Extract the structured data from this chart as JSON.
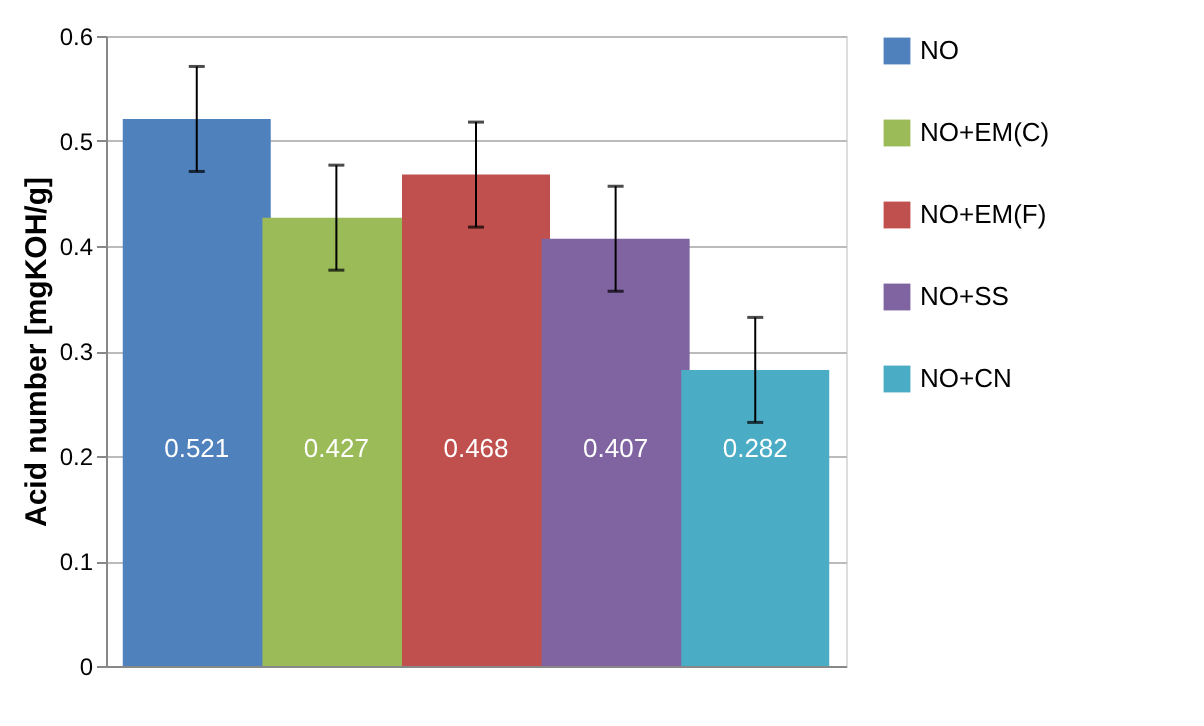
{
  "chart_data": {
    "type": "bar",
    "ylabel": "Acid number [mgKOH/g]",
    "categories": [
      null
    ],
    "series": [
      {
        "name": "NO",
        "color": "#4f81bd",
        "values": [
          0.521
        ],
        "errors": [
          0.05
        ]
      },
      {
        "name": "NO+EM(C)",
        "color": "#9bbb59",
        "values": [
          0.427
        ],
        "errors": [
          0.05
        ]
      },
      {
        "name": "NO+EM(F)",
        "color": "#c0504d",
        "values": [
          0.468
        ],
        "errors": [
          0.05
        ]
      },
      {
        "name": "NO+SS",
        "color": "#8064a2",
        "values": [
          0.407
        ],
        "errors": [
          0.05
        ]
      },
      {
        "name": "NO+CN",
        "color": "#4bacc6",
        "values": [
          0.282
        ],
        "errors": [
          0.05
        ]
      }
    ],
    "ylim": [
      0,
      0.6
    ],
    "yticks": [
      0,
      0.1,
      0.2,
      0.3,
      0.4,
      0.5,
      0.6
    ],
    "grid": "y",
    "legend": "right",
    "data_labels": true
  }
}
